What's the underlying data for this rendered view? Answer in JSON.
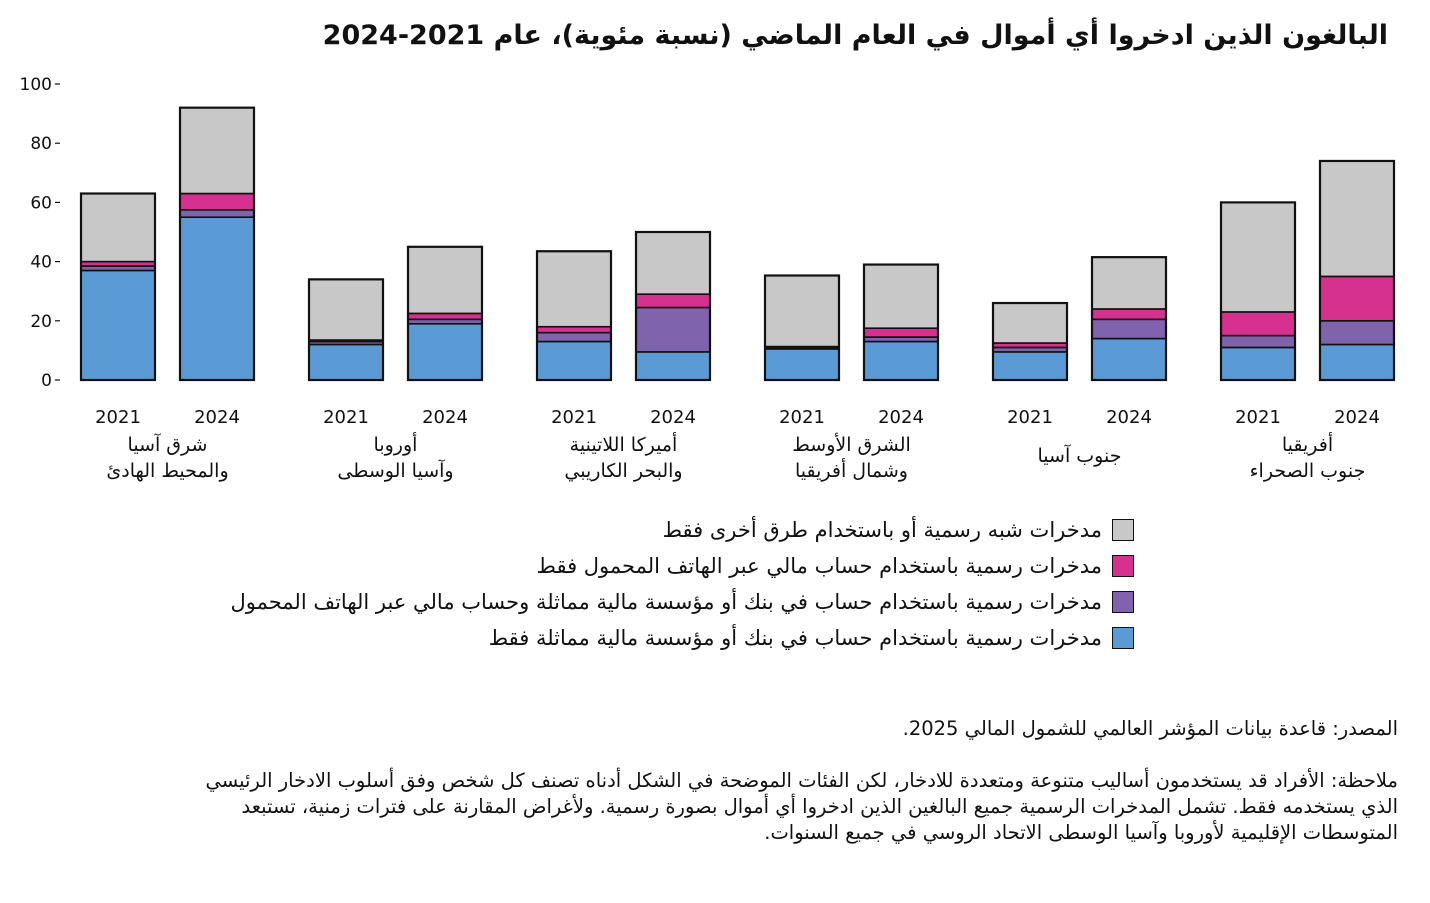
{
  "title": "البالغون الذين ادخروا أي أموال في العام الماضي (نسبة مئوية)، عام 2021-2024",
  "chart_data": {
    "type": "bar",
    "stacked": true,
    "ylim": [
      0,
      100
    ],
    "yticks": [
      "0",
      "20",
      "40",
      "60",
      "80",
      "100"
    ],
    "groups": [
      {
        "label": [
          "شرق آسيا",
          "والمحيط الهادئ"
        ],
        "years": [
          "2021",
          "2024"
        ]
      },
      {
        "label": [
          "أوروبا",
          "وآسيا الوسطى"
        ],
        "years": [
          "2021",
          "2024"
        ]
      },
      {
        "label": [
          "أميركا اللاتينية",
          "والبحر الكاريبي"
        ],
        "years": [
          "2021",
          "2024"
        ]
      },
      {
        "label": [
          "الشرق الأوسط",
          "وشمال أفريقيا"
        ],
        "years": [
          "2021",
          "2024"
        ]
      },
      {
        "label": [
          "جنوب آسيا"
        ],
        "years": [
          "2021",
          "2024"
        ]
      },
      {
        "label": [
          "أفريقيا",
          "جنوب الصحراء"
        ],
        "years": [
          "2021",
          "2024"
        ]
      }
    ],
    "series": [
      {
        "name": "مدخرات رسمية باستخدام حساب في بنك أو مؤسسة مالية مماثلة فقط",
        "color": "#5b9bd5",
        "values": [
          [
            37,
            55
          ],
          [
            12,
            19
          ],
          [
            13,
            9.5
          ],
          [
            10.5,
            13
          ],
          [
            9.5,
            14
          ],
          [
            11,
            12
          ]
        ]
      },
      {
        "name": "مدخرات رسمية باستخدام حساب في بنك أو مؤسسة مالية مماثلة وحساب مالي عبر الهاتف المحمول",
        "color": "#7f63ad",
        "values": [
          [
            1.5,
            2.5
          ],
          [
            1,
            1.5
          ],
          [
            3,
            15
          ],
          [
            0.5,
            1.5
          ],
          [
            1.5,
            6.5
          ],
          [
            4,
            8
          ]
        ]
      },
      {
        "name": "مدخرات رسمية باستخدام حساب مالي عبر الهاتف المحمول فقط",
        "color": "#d6318f",
        "values": [
          [
            1.5,
            5.5
          ],
          [
            0.5,
            2
          ],
          [
            2,
            4.5
          ],
          [
            0.3,
            3
          ],
          [
            1.5,
            3.5
          ],
          [
            8,
            15
          ]
        ]
      },
      {
        "name": "مدخرات شبه رسمية أو باستخدام طرق أخرى فقط",
        "color": "#c8c8c8",
        "values": [
          [
            23,
            29
          ],
          [
            20.5,
            22.5
          ],
          [
            25.5,
            21
          ],
          [
            24,
            21.5
          ],
          [
            13.5,
            17.5
          ],
          [
            37,
            39
          ]
        ]
      }
    ]
  },
  "legend_order": [
    3,
    2,
    1,
    0
  ],
  "source": "المصدر: قاعدة بيانات المؤشر العالمي للشمول المالي 2025.",
  "note": [
    "ملاحظة: الأفراد قد يستخدمون أساليب متنوعة ومتعددة للادخار، لكن الفئات الموضحة في الشكل أدناه تصنف كل شخص وفق أسلوب الادخار الرئيسي",
    "الذي يستخدمه فقط.  تشمل المدخرات الرسمية جميع البالغين الذين ادخروا أي أموال بصورة رسمية. ولأغراض المقارنة على فترات زمنية، تستبعد",
    "المتوسطات الإقليمية لأوروبا وآسيا الوسطى الاتحاد الروسي في جميع السنوات."
  ]
}
